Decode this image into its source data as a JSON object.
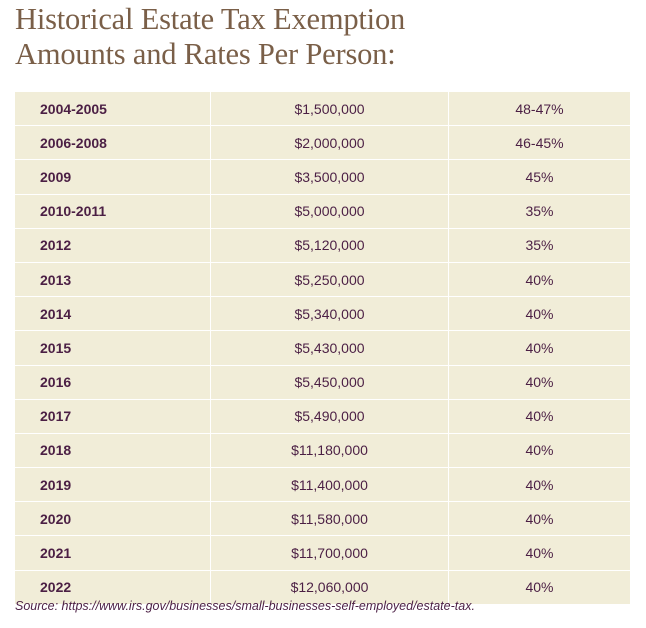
{
  "title": {
    "line1": "Historical Estate Tax Exemption",
    "line2": "Amounts and Rates Per Person:"
  },
  "table": {
    "rows": [
      {
        "year": "2004-2005",
        "amount": "$1,500,000",
        "rate": "48-47%"
      },
      {
        "year": "2006-2008",
        "amount": "$2,000,000",
        "rate": "46-45%"
      },
      {
        "year": "2009",
        "amount": "$3,500,000",
        "rate": "45%"
      },
      {
        "year": "2010-2011",
        "amount": "$5,000,000",
        "rate": "35%"
      },
      {
        "year": "2012",
        "amount": "$5,120,000",
        "rate": "35%"
      },
      {
        "year": "2013",
        "amount": "$5,250,000",
        "rate": "40%"
      },
      {
        "year": "2014",
        "amount": "$5,340,000",
        "rate": "40%"
      },
      {
        "year": "2015",
        "amount": "$5,430,000",
        "rate": "40%"
      },
      {
        "year": "2016",
        "amount": "$5,450,000",
        "rate": "40%"
      },
      {
        "year": "2017",
        "amount": "$5,490,000",
        "rate": "40%"
      },
      {
        "year": "2018",
        "amount": "$11,180,000",
        "rate": "40%"
      },
      {
        "year": "2019",
        "amount": "$11,400,000",
        "rate": "40%"
      },
      {
        "year": "2020",
        "amount": "$11,580,000",
        "rate": "40%"
      },
      {
        "year": "2021",
        "amount": "$11,700,000",
        "rate": "40%"
      },
      {
        "year": "2022",
        "amount": "$12,060,000",
        "rate": "40%"
      }
    ]
  },
  "source": "Source: https://www.irs.gov/businesses/small-businesses-self-employed/estate-tax.",
  "colors": {
    "title": "#7a5f48",
    "table_background": "#f1edd8",
    "table_text": "#4b1f44",
    "grid_lines": "#ffffff"
  }
}
